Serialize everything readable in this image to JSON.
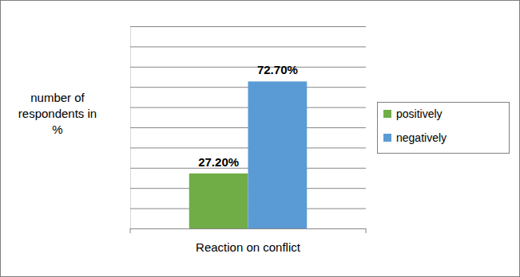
{
  "chart_data": {
    "type": "bar",
    "categories": [
      "Reaction on conflict"
    ],
    "series": [
      {
        "name": "positively",
        "color": "#70ad47",
        "values": [
          27.2
        ],
        "value_labels": [
          "27.20%"
        ]
      },
      {
        "name": "negatively",
        "color": "#5b9bd5",
        "values": [
          72.7
        ],
        "value_labels": [
          "72.70%"
        ]
      }
    ],
    "y_label": "number of respondents in %",
    "ylim": [
      0,
      100
    ],
    "yticks": [
      0,
      10,
      20,
      30,
      40,
      50,
      60,
      70,
      80,
      90,
      100
    ],
    "grid": true,
    "data_labels": true,
    "tick_labels": "x",
    "legend": "right"
  }
}
